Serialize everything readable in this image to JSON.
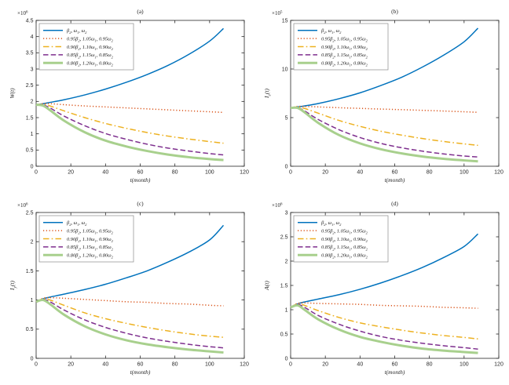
{
  "page": {
    "background": "#ffffff"
  },
  "chart_data": [
    {
      "type": "line",
      "title": "(a)",
      "xlabel": "t(month)",
      "ylabel": "W(t)",
      "y_scale_label": "×10^6",
      "xlim": [
        0,
        120
      ],
      "ylim": [
        0,
        4.5
      ],
      "xticks": [
        0,
        20,
        40,
        60,
        80,
        100,
        120
      ],
      "yticks": [
        0,
        0.5,
        1,
        1.5,
        2,
        2.5,
        3,
        3.5,
        4,
        4.5
      ],
      "grid": false,
      "legend_position": "northwest",
      "x": [
        0,
        4,
        8,
        16,
        28,
        40,
        52,
        64,
        76,
        88,
        100,
        108
      ],
      "series": [
        {
          "name": "β_2, ω_1, ω_2",
          "color": "#0072BD",
          "style": "solid",
          "width": 1.5,
          "y": [
            1.9,
            1.93,
            1.97,
            2.05,
            2.2,
            2.38,
            2.59,
            2.83,
            3.11,
            3.45,
            3.86,
            4.25
          ]
        },
        {
          "name": "0.95β_2, 1.05ω_1, 0.95ω_2",
          "color": "#D95319",
          "style": "dotted",
          "width": 1.5,
          "y": [
            1.9,
            1.93,
            1.93,
            1.9,
            1.86,
            1.83,
            1.8,
            1.77,
            1.74,
            1.71,
            1.68,
            1.66
          ]
        },
        {
          "name": "0.90β_2, 1.10ω_1, 0.90ω_2",
          "color": "#EDB120",
          "style": "dashdot",
          "width": 1.5,
          "y": [
            1.9,
            1.91,
            1.86,
            1.71,
            1.5,
            1.32,
            1.17,
            1.04,
            0.93,
            0.84,
            0.76,
            0.71
          ]
        },
        {
          "name": "0.85β_2, 1.15ω_1, 0.85ω_2",
          "color": "#7E2F8E",
          "style": "dashed",
          "width": 1.5,
          "y": [
            1.9,
            1.89,
            1.8,
            1.55,
            1.25,
            1.01,
            0.83,
            0.68,
            0.56,
            0.47,
            0.39,
            0.35
          ]
        },
        {
          "name": "0.80β_2, 1.20ω_1, 0.80ω_2",
          "color": "#A8D08D",
          "style": "solid",
          "width": 3.0,
          "y": [
            1.9,
            1.87,
            1.73,
            1.41,
            1.05,
            0.79,
            0.61,
            0.47,
            0.36,
            0.28,
            0.22,
            0.19
          ]
        }
      ]
    },
    {
      "type": "line",
      "title": "(b)",
      "xlabel": "t(month)",
      "ylabel": "I_e(t)",
      "y_scale_label": "×10^5",
      "xlim": [
        0,
        120
      ],
      "ylim": [
        0,
        15
      ],
      "xticks": [
        0,
        20,
        40,
        60,
        80,
        100,
        120
      ],
      "yticks": [
        0,
        5,
        10,
        15
      ],
      "grid": false,
      "legend_position": "northwest",
      "x": [
        0,
        4,
        8,
        16,
        28,
        40,
        52,
        64,
        76,
        88,
        100,
        108
      ],
      "series": [
        {
          "name": "β_2, ω_1, ω_2",
          "color": "#0072BD",
          "style": "solid",
          "width": 1.5,
          "y": [
            6.0,
            6.1,
            6.2,
            6.45,
            6.95,
            7.55,
            8.3,
            9.15,
            10.2,
            11.4,
            12.8,
            14.2
          ]
        },
        {
          "name": "0.95β_2, 1.05ω_1, 0.95ω_2",
          "color": "#D95319",
          "style": "dotted",
          "width": 1.5,
          "y": [
            6.0,
            6.15,
            6.15,
            6.1,
            6.02,
            5.95,
            5.88,
            5.82,
            5.75,
            5.68,
            5.6,
            5.55
          ]
        },
        {
          "name": "0.90β_2, 1.10ω_1, 0.90ω_2",
          "color": "#EDB120",
          "style": "dashdot",
          "width": 1.5,
          "y": [
            6.0,
            6.1,
            5.95,
            5.45,
            4.7,
            4.1,
            3.6,
            3.2,
            2.85,
            2.55,
            2.3,
            2.15
          ]
        },
        {
          "name": "0.85β_2, 1.15ω_1, 0.85ω_2",
          "color": "#7E2F8E",
          "style": "dashed",
          "width": 1.5,
          "y": [
            6.0,
            6.05,
            5.7,
            4.8,
            3.75,
            2.95,
            2.35,
            1.9,
            1.55,
            1.27,
            1.05,
            0.95
          ]
        },
        {
          "name": "0.80β_2, 1.20ω_1, 0.80ω_2",
          "color": "#A8D08D",
          "style": "solid",
          "width": 3.0,
          "y": [
            6.0,
            6.0,
            5.55,
            4.45,
            3.2,
            2.35,
            1.75,
            1.32,
            1.0,
            0.77,
            0.6,
            0.5
          ]
        }
      ]
    },
    {
      "type": "line",
      "title": "(c)",
      "xlabel": "t(month)",
      "ylabel": "I_y(t)",
      "y_scale_label": "×10^6",
      "xlim": [
        0,
        120
      ],
      "ylim": [
        0,
        2.5
      ],
      "xticks": [
        0,
        20,
        40,
        60,
        80,
        100,
        120
      ],
      "yticks": [
        0,
        0.5,
        1,
        1.5,
        2,
        2.5
      ],
      "grid": false,
      "legend_position": "northwest",
      "x": [
        0,
        4,
        8,
        16,
        28,
        40,
        52,
        64,
        76,
        88,
        100,
        108
      ],
      "series": [
        {
          "name": "β_2, ω_1, ω_2",
          "color": "#0072BD",
          "style": "solid",
          "width": 1.5,
          "y": [
            0.97,
            1.02,
            1.05,
            1.1,
            1.18,
            1.27,
            1.38,
            1.5,
            1.65,
            1.82,
            2.03,
            2.28
          ]
        },
        {
          "name": "0.95β_2, 1.05ω_1, 0.95ω_2",
          "color": "#D95319",
          "style": "dotted",
          "width": 1.5,
          "y": [
            0.97,
            1.03,
            1.04,
            1.03,
            1.01,
            0.99,
            0.97,
            0.96,
            0.94,
            0.93,
            0.91,
            0.9
          ]
        },
        {
          "name": "0.90β_2, 1.10ω_1, 0.90ω_2",
          "color": "#EDB120",
          "style": "dashdot",
          "width": 1.5,
          "y": [
            0.97,
            1.02,
            1.0,
            0.91,
            0.78,
            0.68,
            0.6,
            0.53,
            0.47,
            0.42,
            0.38,
            0.36
          ]
        },
        {
          "name": "0.85β_2, 1.15ω_1, 0.85ω_2",
          "color": "#7E2F8E",
          "style": "dashed",
          "width": 1.5,
          "y": [
            0.97,
            1.01,
            0.97,
            0.83,
            0.66,
            0.53,
            0.43,
            0.35,
            0.29,
            0.24,
            0.2,
            0.18
          ]
        },
        {
          "name": "0.80β_2, 1.20ω_1, 0.80ω_2",
          "color": "#A8D08D",
          "style": "solid",
          "width": 3.0,
          "y": [
            0.97,
            1.0,
            0.93,
            0.75,
            0.55,
            0.41,
            0.31,
            0.24,
            0.19,
            0.15,
            0.12,
            0.1
          ]
        }
      ]
    },
    {
      "type": "line",
      "title": "(d)",
      "xlabel": "t(month)",
      "ylabel": "A(t)",
      "y_scale_label": "×10^6",
      "xlim": [
        0,
        120
      ],
      "ylim": [
        0,
        3
      ],
      "xticks": [
        0,
        20,
        40,
        60,
        80,
        100,
        120
      ],
      "yticks": [
        0,
        0.5,
        1,
        1.5,
        2,
        2.5,
        3
      ],
      "grid": false,
      "legend_position": "northwest",
      "x": [
        0,
        4,
        8,
        16,
        28,
        40,
        52,
        64,
        76,
        88,
        100,
        108
      ],
      "series": [
        {
          "name": "β_2, ω_1, ω_2",
          "color": "#0072BD",
          "style": "solid",
          "width": 1.5,
          "y": [
            1.05,
            1.12,
            1.16,
            1.22,
            1.31,
            1.42,
            1.55,
            1.7,
            1.87,
            2.07,
            2.3,
            2.56
          ]
        },
        {
          "name": "0.95β_2, 1.05ω_1, 0.95ω_2",
          "color": "#D95319",
          "style": "dotted",
          "width": 1.5,
          "y": [
            1.05,
            1.13,
            1.14,
            1.13,
            1.12,
            1.11,
            1.09,
            1.08,
            1.07,
            1.05,
            1.04,
            1.03
          ]
        },
        {
          "name": "0.90β_2, 1.10ω_1, 0.90ω_2",
          "color": "#EDB120",
          "style": "dashdot",
          "width": 1.5,
          "y": [
            1.05,
            1.12,
            1.09,
            0.98,
            0.84,
            0.73,
            0.65,
            0.58,
            0.52,
            0.47,
            0.43,
            0.4
          ]
        },
        {
          "name": "0.85β_2, 1.15ω_1, 0.85ω_2",
          "color": "#7E2F8E",
          "style": "dashed",
          "width": 1.5,
          "y": [
            1.05,
            1.11,
            1.05,
            0.88,
            0.7,
            0.56,
            0.45,
            0.37,
            0.31,
            0.26,
            0.22,
            0.19
          ]
        },
        {
          "name": "0.80β_2, 1.20ω_1, 0.80ω_2",
          "color": "#A8D08D",
          "style": "solid",
          "width": 3.0,
          "y": [
            1.05,
            1.09,
            1.0,
            0.8,
            0.59,
            0.44,
            0.34,
            0.26,
            0.2,
            0.16,
            0.13,
            0.11
          ]
        }
      ]
    }
  ]
}
